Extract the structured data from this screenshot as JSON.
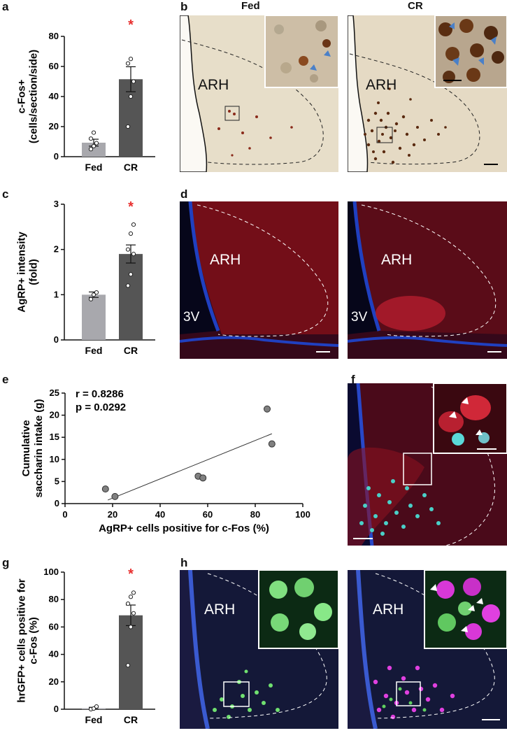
{
  "panels": {
    "a": "a",
    "b": "b",
    "c": "c",
    "d": "d",
    "e": "e",
    "f": "f",
    "g": "g",
    "h": "h"
  },
  "panel_b": {
    "left_title": "Fed",
    "right_title": "CR",
    "region_left": "ARH",
    "region_right": "ARH"
  },
  "panel_d": {
    "region_left": "ARH",
    "region_right": "ARH",
    "ventricle_left": "3V",
    "ventricle_right": "3V"
  },
  "panel_h": {
    "region_left": "ARH",
    "region_right": "ARH"
  },
  "panel_e_stats": {
    "r": "r = 0.8286",
    "p": "p = 0.0292"
  },
  "colors": {
    "fed_bar": "#a8a8ad",
    "cr_bar": "#555555",
    "significance": "#e8302f",
    "scatter_point": "#808080"
  },
  "chart_data": [
    {
      "id": "a",
      "type": "bar",
      "categories": [
        "Fed",
        "CR"
      ],
      "values": [
        9.3,
        51.5
      ],
      "errors": [
        2.3,
        8.3
      ],
      "points": [
        [
          5,
          7,
          9,
          12,
          16
        ],
        [
          20,
          40,
          50,
          62,
          65
        ]
      ],
      "significance": "*",
      "ylabel": [
        "c-Fos+",
        "(cells/section/side)"
      ],
      "ylim": [
        0,
        80
      ],
      "yticks": [
        0,
        20,
        40,
        60,
        80
      ]
    },
    {
      "id": "c",
      "type": "bar",
      "categories": [
        "Fed",
        "CR"
      ],
      "values": [
        1.0,
        1.9
      ],
      "errors": [
        0.06,
        0.2
      ],
      "points": [
        [
          0.9,
          1.0,
          1.05
        ],
        [
          1.2,
          1.45,
          1.9,
          2.0,
          2.35,
          2.55
        ]
      ],
      "significance": "*",
      "ylabel": [
        "AgRP+ intensity",
        "(fold)"
      ],
      "ylim": [
        0,
        3
      ],
      "yticks": [
        0,
        1,
        2,
        3
      ]
    },
    {
      "id": "e",
      "type": "scatter",
      "x": [
        17,
        21,
        56,
        58,
        85,
        87
      ],
      "y": [
        3.3,
        1.6,
        6.2,
        5.8,
        21.4,
        13.5
      ],
      "fit": [
        [
          18,
          0.8
        ],
        [
          87,
          15.8
        ]
      ],
      "xlabel": "AgRP+ cells positive for c-Fos (%)",
      "ylabel": [
        "Cumulative",
        "saccharin intake (g)"
      ],
      "xlim": [
        0,
        100
      ],
      "ylim": [
        0,
        25
      ],
      "xticks": [
        0,
        20,
        40,
        60,
        80,
        100
      ],
      "yticks": [
        0,
        5,
        10,
        15,
        20,
        25
      ]
    },
    {
      "id": "g",
      "type": "bar",
      "categories": [
        "Fed",
        "CR"
      ],
      "values": [
        0.7,
        68.5
      ],
      "errors": [
        0.7,
        7.5
      ],
      "points": [
        [
          0,
          0.5,
          2
        ],
        [
          32,
          60,
          70,
          77,
          82,
          85
        ]
      ],
      "significance": "*",
      "ylabel": [
        "hrGFP+ cells positive for",
        "c-Fos (%)"
      ],
      "ylim": [
        0,
        100
      ],
      "yticks": [
        0,
        20,
        40,
        60,
        80,
        100
      ]
    }
  ]
}
